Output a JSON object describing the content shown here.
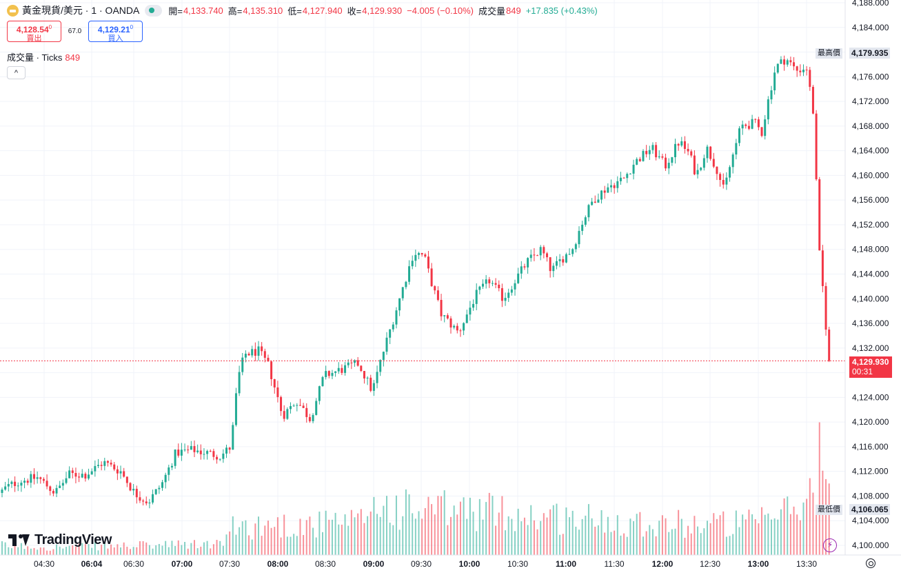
{
  "header": {
    "symbol": "黃金現貨/美元 · 1 · OANDA",
    "wave_glyph": "≈",
    "open_label": "開=",
    "open": "4,133.740",
    "high_label": "高=",
    "high": "4,135.310",
    "low_label": "低=",
    "low": "4,127.940",
    "close_label": "收=",
    "close": "4,129.930",
    "change": "−4.005 (−0.10%)",
    "volume_label": "成交量",
    "volume": "849",
    "volume_change": "+17.835 (+0.43%)"
  },
  "quote": {
    "sell_price": "4,128.54",
    "sell_price_sup": "0",
    "sell_label": "賣出",
    "spread": "67.0",
    "buy_price": "4,129.21",
    "buy_price_sup": "0",
    "buy_label": "買入"
  },
  "volume_legend": {
    "name": "成交量 · Ticks",
    "value": "849"
  },
  "collapse_glyph": "^",
  "price_markers": {
    "high_label": "最高價",
    "high_value": "4,179.935",
    "low_label": "最低價",
    "low_value": "4,106.065",
    "last_value": "4,129.930",
    "countdown": "00:31"
  },
  "branding": "TradingView",
  "bolt_glyph": "⚡",
  "colors": {
    "up": "#22ab94",
    "down": "#f23645",
    "grid": "#f0f3fa",
    "last": "#f23645"
  },
  "chart_data": {
    "type": "candlestick",
    "interval": "1",
    "ylim": [
      4100,
      4188
    ],
    "y_ticks": [
      "4,188.000",
      "4,184.000",
      "4,180.000",
      "4,176.000",
      "4,172.000",
      "4,168.000",
      "4,164.000",
      "4,160.000",
      "4,156.000",
      "4,152.000",
      "4,148.000",
      "4,144.000",
      "4,140.000",
      "4,136.000",
      "4,132.000",
      "4,128.000",
      "4,124.000",
      "4,120.000",
      "4,116.000",
      "4,112.000",
      "4,108.000",
      "4,104.000",
      "4,100.000"
    ],
    "x_ticks": [
      "04:30",
      "06:04",
      "06:30",
      "07:00",
      "07:30",
      "08:00",
      "08:30",
      "09:00",
      "09:30",
      "10:00",
      "10:30",
      "11:00",
      "11:30",
      "12:00",
      "12:30",
      "13:00",
      "13:30"
    ],
    "last_price": 4129.93,
    "high": 4179.935,
    "low": 4106.065,
    "price_path": [
      [
        0,
        4108.5
      ],
      [
        10,
        4109.5
      ],
      [
        30,
        4110.5
      ],
      [
        55,
        4111.0
      ],
      [
        80,
        4108.5
      ],
      [
        100,
        4111.5
      ],
      [
        125,
        4111.5
      ],
      [
        150,
        4113.5
      ],
      [
        175,
        4112.0
      ],
      [
        195,
        4108.5
      ],
      [
        215,
        4107.0
      ],
      [
        235,
        4110.0
      ],
      [
        255,
        4115.0
      ],
      [
        280,
        4115.5
      ],
      [
        300,
        4115.0
      ],
      [
        320,
        4114.5
      ],
      [
        335,
        4116.0
      ],
      [
        345,
        4127.0
      ],
      [
        355,
        4131.0
      ],
      [
        375,
        4131.5
      ],
      [
        390,
        4129.0
      ],
      [
        410,
        4121.0
      ],
      [
        430,
        4123.5
      ],
      [
        450,
        4120.5
      ],
      [
        470,
        4127.5
      ],
      [
        495,
        4128.5
      ],
      [
        520,
        4129.5
      ],
      [
        540,
        4125.0
      ],
      [
        555,
        4131.0
      ],
      [
        570,
        4136.5
      ],
      [
        585,
        4142.0
      ],
      [
        600,
        4147.5
      ],
      [
        615,
        4147.0
      ],
      [
        625,
        4143.0
      ],
      [
        640,
        4137.5
      ],
      [
        665,
        4134.5
      ],
      [
        690,
        4140.5
      ],
      [
        710,
        4143.0
      ],
      [
        730,
        4140.0
      ],
      [
        750,
        4143.5
      ],
      [
        765,
        4146.0
      ],
      [
        785,
        4148.0
      ],
      [
        800,
        4144.5
      ],
      [
        815,
        4146.5
      ],
      [
        830,
        4148.0
      ],
      [
        845,
        4152.5
      ],
      [
        860,
        4156.0
      ],
      [
        880,
        4158.0
      ],
      [
        905,
        4159.5
      ],
      [
        920,
        4162.0
      ],
      [
        945,
        4164.5
      ],
      [
        965,
        4161.5
      ],
      [
        985,
        4165.5
      ],
      [
        1000,
        4163.5
      ],
      [
        1010,
        4160.0
      ],
      [
        1025,
        4164.5
      ],
      [
        1040,
        4161.0
      ],
      [
        1050,
        4157.5
      ],
      [
        1060,
        4162.0
      ],
      [
        1075,
        4168.0
      ],
      [
        1095,
        4168.5
      ],
      [
        1105,
        4167.0
      ],
      [
        1115,
        4172.5
      ],
      [
        1125,
        4177.5
      ],
      [
        1140,
        4179.0
      ],
      [
        1155,
        4177.0
      ],
      [
        1170,
        4177.5
      ],
      [
        1180,
        4170.0
      ],
      [
        1188,
        4148.0
      ],
      [
        1195,
        4140.0
      ],
      [
        1202,
        4129.93
      ]
    ],
    "volume_ylim": [
      0,
      400
    ],
    "volume_profile": [
      [
        0,
        30
      ],
      [
        80,
        25
      ],
      [
        200,
        30
      ],
      [
        320,
        35
      ],
      [
        340,
        90
      ],
      [
        400,
        95
      ],
      [
        520,
        100
      ],
      [
        540,
        160
      ],
      [
        600,
        140
      ],
      [
        700,
        140
      ],
      [
        800,
        120
      ],
      [
        900,
        110
      ],
      [
        980,
        100
      ],
      [
        1100,
        100
      ],
      [
        1130,
        130
      ],
      [
        1170,
        160
      ],
      [
        1180,
        230
      ],
      [
        1190,
        330
      ],
      [
        1202,
        170
      ]
    ]
  }
}
